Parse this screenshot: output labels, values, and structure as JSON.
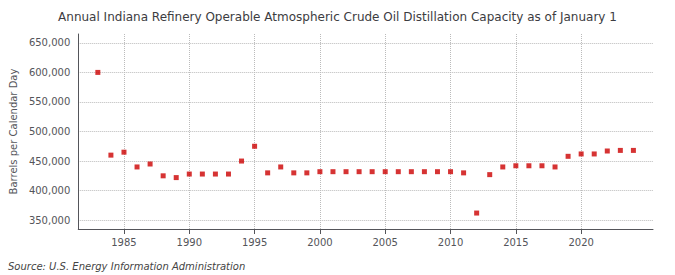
{
  "chart_data": {
    "type": "scatter",
    "title": "Annual Indiana Refinery Operable Atmospheric Crude Oil Distillation Capacity as of January 1",
    "ylabel": "Barrels per Calendar Day",
    "annotations": [
      "Source: U.S. Energy Information Administration"
    ],
    "x": [
      1983,
      1984,
      1985,
      1986,
      1987,
      1988,
      1989,
      1990,
      1991,
      1992,
      1993,
      1994,
      1995,
      1996,
      1997,
      1998,
      1999,
      2000,
      2001,
      2002,
      2003,
      2004,
      2005,
      2006,
      2007,
      2008,
      2009,
      2010,
      2011,
      2012,
      2013,
      2014,
      2015,
      2016,
      2017,
      2018,
      2019,
      2020,
      2021,
      2022,
      2023,
      2024
    ],
    "values": [
      600000,
      460000,
      465000,
      440000,
      445000,
      425000,
      422000,
      428000,
      428000,
      428000,
      428000,
      450000,
      475000,
      430000,
      440000,
      430000,
      430000,
      432000,
      432000,
      432000,
      432000,
      432000,
      432000,
      432000,
      432000,
      432000,
      432000,
      432000,
      430000,
      362000,
      427000,
      440000,
      442000,
      442000,
      442000,
      440000,
      458000,
      462000,
      462000,
      467000,
      468000,
      468000
    ],
    "color": "#cc0000",
    "marker": "square",
    "xlim": [
      1981.5,
      2025.5
    ],
    "xticks": [
      1985,
      1990,
      1995,
      2000,
      2005,
      2010,
      2015,
      2020
    ],
    "ylim": [
      335000,
      665000
    ],
    "yticks": [
      {
        "value": 350000,
        "label": "350,000"
      },
      {
        "value": 400000,
        "label": "400,000"
      },
      {
        "value": 450000,
        "label": "450,000"
      },
      {
        "value": 500000,
        "label": "500,000"
      },
      {
        "value": 550000,
        "label": "550,000"
      },
      {
        "value": 600000,
        "label": "600,000"
      },
      {
        "value": 650000,
        "label": "650,000"
      }
    ],
    "grid": true
  }
}
